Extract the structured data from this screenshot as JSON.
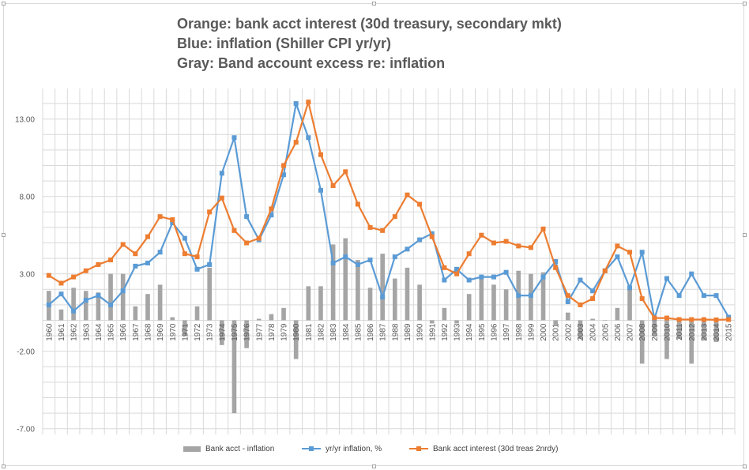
{
  "titles": [
    "Orange: bank acct interest (30d treasury, secondary mkt)",
    "Blue: inflation (Shiller CPI yr/yr)",
    "Gray: Band account excess re: inflation"
  ],
  "legend": {
    "excess": "Bank acct - inflation",
    "inflation": "yr/yr inflation, %",
    "interest": "Bank acct interest (30d treas 2nrdy)"
  },
  "colors": {
    "excess": "#a5a5a5",
    "inflation": "#5b9bd5",
    "interest": "#ed7d31",
    "grid": "#d9d9d9",
    "axis_text": "#595959"
  },
  "chart_data": {
    "type": "bar+line",
    "title": "Orange: bank acct interest (30d treasury, secondary mkt) / Blue: inflation (Shiller CPI yr/yr) / Gray: Band account excess re: inflation",
    "categories": [
      "1960",
      "1961",
      "1962",
      "1963",
      "1964",
      "1965",
      "1966",
      "1967",
      "1968",
      "1969",
      "1970",
      "1971",
      "1972",
      "1973",
      "1974",
      "1975",
      "1976",
      "1977",
      "1978",
      "1979",
      "1980",
      "1981",
      "1982",
      "1983",
      "1984",
      "1985",
      "1986",
      "1987",
      "1988",
      "1989",
      "1990",
      "1991",
      "1992",
      "1993",
      "1994",
      "1995",
      "1996",
      "1997",
      "1998",
      "1999",
      "2000",
      "2001",
      "2002",
      "2003",
      "2004",
      "2005",
      "2006",
      "2007",
      "2008",
      "2009",
      "2010",
      "2011",
      "2012",
      "2013",
      "2014",
      "2015"
    ],
    "yticks": [
      "13.00",
      "8.00",
      "3.00",
      "-2.00",
      "-7.00"
    ],
    "ylim": [
      -7,
      14
    ],
    "grid": true,
    "legend_position": "bottom",
    "series": [
      {
        "name": "Bank acct - inflation",
        "kind": "bar",
        "values": [
          1.9,
          0.7,
          2.1,
          1.9,
          1.8,
          3.0,
          3.0,
          0.9,
          1.7,
          2.3,
          0.2,
          -1.0,
          0.9,
          3.4,
          -1.6,
          -6.0,
          -1.8,
          0.1,
          0.4,
          0.8,
          -2.5,
          2.2,
          2.2,
          4.9,
          5.3,
          3.9,
          2.1,
          4.3,
          2.7,
          3.4,
          2.3,
          -0.2,
          0.8,
          -0.2,
          1.7,
          2.8,
          2.3,
          2.0,
          3.2,
          3.0,
          3.1,
          -0.3,
          0.5,
          -1.2,
          0.1,
          0.0,
          0.8,
          2.1,
          -2.8,
          -1.0,
          -2.5,
          -1.2,
          -2.8,
          -1.3,
          -1.4,
          -0.1
        ]
      },
      {
        "name": "yr/yr inflation, %",
        "kind": "line",
        "values": [
          1.0,
          1.7,
          0.6,
          1.3,
          1.6,
          1.0,
          1.9,
          3.5,
          3.7,
          4.4,
          6.3,
          5.3,
          3.3,
          3.6,
          9.5,
          11.8,
          6.7,
          5.2,
          6.8,
          9.4,
          14.0,
          11.8,
          8.4,
          3.7,
          4.1,
          3.6,
          3.9,
          1.5,
          4.1,
          4.6,
          5.2,
          5.6,
          2.6,
          3.3,
          2.6,
          2.8,
          2.8,
          3.1,
          1.6,
          1.6,
          2.8,
          3.8,
          1.2,
          2.6,
          1.9,
          3.2,
          4.1,
          2.1,
          4.4,
          0.1,
          2.7,
          1.6,
          3.0,
          1.6,
          1.6,
          0.2
        ]
      },
      {
        "name": "Bank acct interest (30d treas 2nrdy)",
        "kind": "line",
        "values": [
          2.9,
          2.4,
          2.8,
          3.2,
          3.6,
          3.9,
          4.9,
          4.3,
          5.4,
          6.7,
          6.5,
          4.3,
          4.1,
          7.0,
          7.9,
          5.8,
          5.0,
          5.3,
          7.2,
          10.0,
          11.5,
          14.1,
          10.7,
          8.7,
          9.6,
          7.5,
          6.0,
          5.8,
          6.7,
          8.1,
          7.5,
          5.4,
          3.4,
          3.0,
          4.3,
          5.5,
          5.0,
          5.1,
          4.8,
          4.7,
          5.9,
          3.4,
          1.6,
          1.0,
          1.4,
          3.2,
          4.8,
          4.4,
          1.4,
          0.15,
          0.15,
          0.05,
          0.05,
          0.05,
          0.03,
          0.05
        ]
      }
    ]
  }
}
